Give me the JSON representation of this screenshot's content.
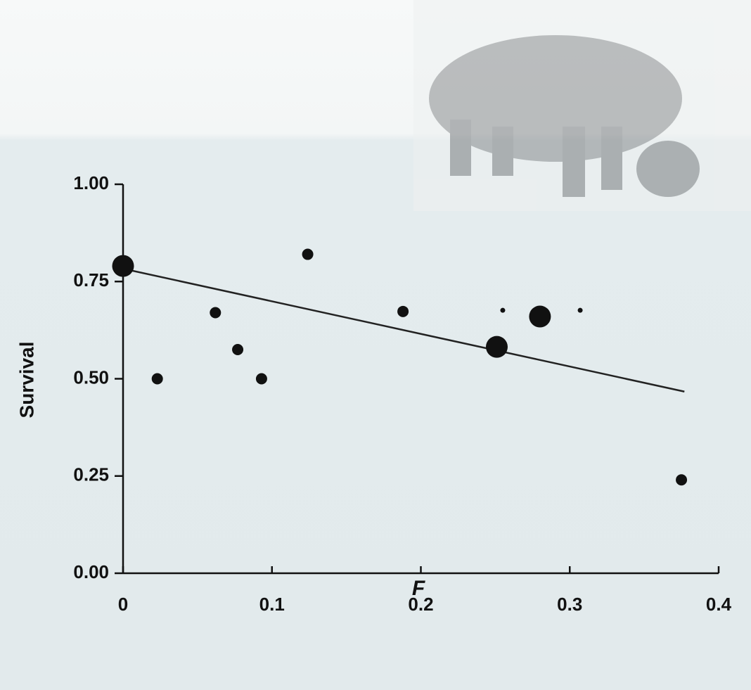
{
  "chart_data": {
    "type": "scatter",
    "x_label": "F",
    "y_label": "Survival",
    "x": [
      0,
      0.023,
      0.062,
      0.077,
      0.093,
      0.124,
      0.188,
      0.251,
      0.255,
      0.28,
      0.307,
      0.375
    ],
    "values": [
      0.79,
      0.5,
      0.67,
      0.575,
      0.5,
      0.82,
      0.673,
      0.582,
      0.676,
      0.66,
      0.676,
      0.24
    ],
    "sizes": [
      3,
      2,
      2,
      2,
      2,
      2,
      2,
      3,
      1,
      3,
      1,
      2
    ],
    "color": "#111111",
    "trend_line": {
      "x": [
        0,
        0.377
      ],
      "y": [
        0.783,
        0.467
      ],
      "color": "#222222"
    },
    "xlim": [
      0,
      0.4
    ],
    "ylim": [
      0,
      1
    ],
    "xticks": [
      0,
      0.1,
      0.2,
      0.3,
      0.4
    ],
    "yticks": [
      {
        "value": 0,
        "label": "0.00"
      },
      {
        "value": 0.25,
        "label": "0.25"
      },
      {
        "value": 0.5,
        "label": "0.50"
      },
      {
        "value": 0.75,
        "label": "0.75"
      },
      {
        "value": 1,
        "label": "1.00"
      }
    ]
  }
}
